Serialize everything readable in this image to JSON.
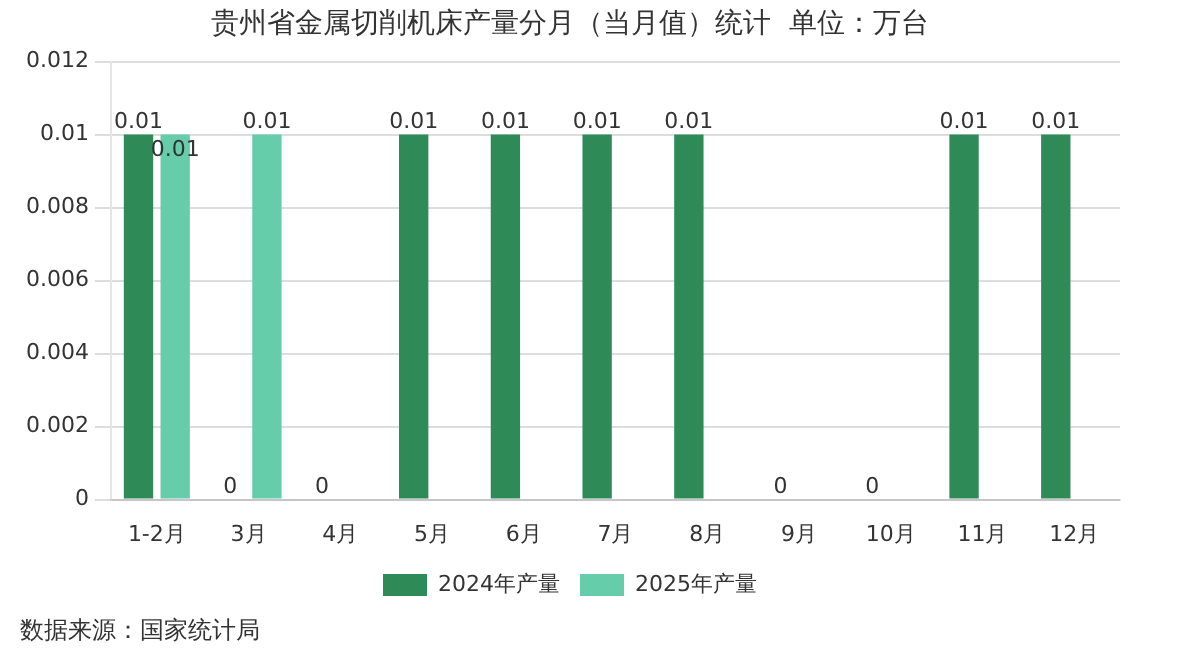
{
  "chart_data": {
    "type": "bar",
    "title": "贵州省金属切削机床产量分月（当月值）统计  单位：万台",
    "categories": [
      "1-2月",
      "3月",
      "4月",
      "5月",
      "6月",
      "7月",
      "8月",
      "9月",
      "10月",
      "11月",
      "12月"
    ],
    "series": [
      {
        "name": "2024年产量",
        "color": "#2e8b57",
        "values": [
          0.01,
          0,
          0,
          0.01,
          0.01,
          0.01,
          0.01,
          0,
          0,
          0.01,
          0.01
        ]
      },
      {
        "name": "2025年产量",
        "color": "#66cdaa",
        "values": [
          0.01,
          0.01,
          null,
          null,
          null,
          null,
          null,
          null,
          null,
          null,
          null
        ]
      }
    ],
    "ylim": [
      0,
      0.012
    ],
    "yticks": [
      0,
      0.002,
      0.004,
      0.006,
      0.008,
      0.01,
      0.012
    ],
    "grid": "y",
    "legend": "bottom",
    "data_labels": true,
    "annotations": [
      "数据来源：国家统计局"
    ]
  }
}
